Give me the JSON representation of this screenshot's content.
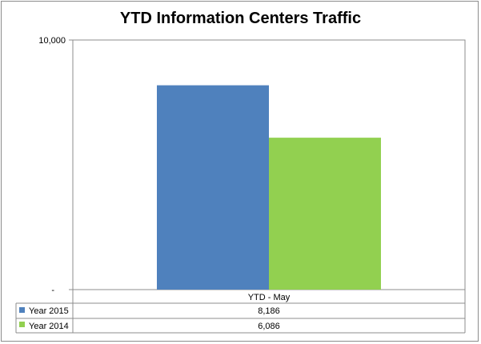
{
  "chart_data": {
    "type": "bar",
    "title": "YTD Information Centers Traffic",
    "categories": [
      "YTD - May"
    ],
    "series": [
      {
        "name": "Year 2015",
        "values": [
          8186
        ],
        "value_labels": [
          "8,186"
        ],
        "color": "#4f81bd"
      },
      {
        "name": "Year 2014",
        "values": [
          6086
        ],
        "value_labels": [
          "6,086"
        ],
        "color": "#92d050"
      }
    ],
    "ylim": [
      0,
      10000
    ],
    "y_tick_labels": [
      "-",
      "10,000"
    ],
    "grid": false,
    "legend": "data-table"
  }
}
